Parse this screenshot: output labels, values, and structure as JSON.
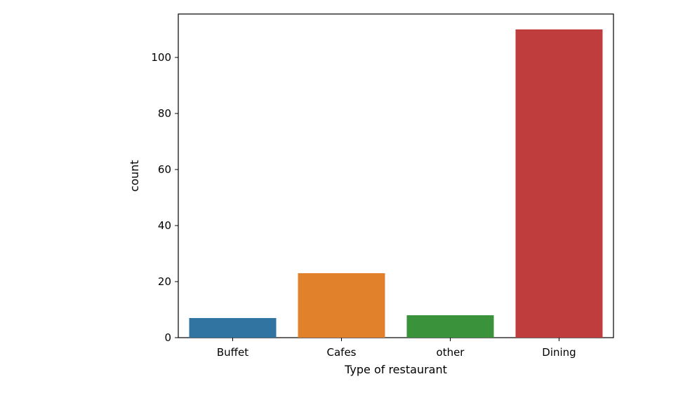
{
  "chart_data": {
    "type": "bar",
    "title": "",
    "xlabel": "Type of restaurant",
    "ylabel": "count",
    "categories": [
      "Buffet",
      "Cafes",
      "other",
      "Dining"
    ],
    "values": [
      7,
      23,
      8,
      110
    ],
    "colors": [
      "#3274a1",
      "#e1812c",
      "#3a923a",
      "#c03d3e"
    ],
    "ylim": [
      0,
      115.5
    ],
    "yticks": [
      0,
      20,
      40,
      60,
      80,
      100
    ],
    "grid": false
  }
}
